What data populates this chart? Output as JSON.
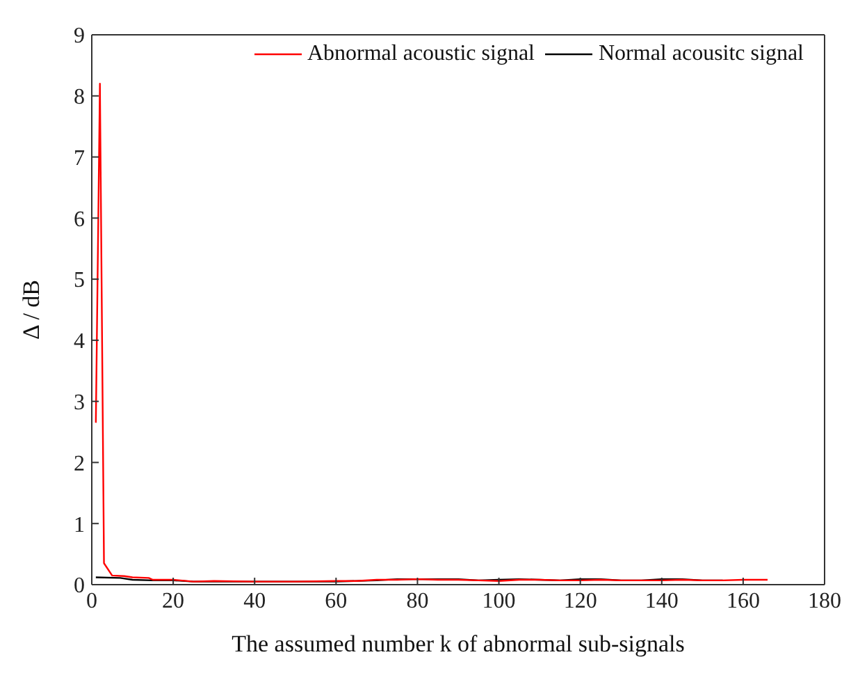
{
  "chart_data": {
    "type": "line",
    "xlabel": "The assumed number k of abnormal sub-signals",
    "ylabel": "Δ / dB",
    "xlim": [
      0,
      180
    ],
    "xticks": [
      0,
      20,
      40,
      60,
      80,
      100,
      120,
      140,
      160,
      180
    ],
    "ylim": [
      0,
      9
    ],
    "yticks": [
      0,
      1,
      2,
      3,
      4,
      5,
      6,
      7,
      8,
      9
    ],
    "legend": "top right",
    "marker": "none",
    "line_style": "solid",
    "series": [
      {
        "name": "Abnormal acoustic signal",
        "color": "#ff0000",
        "x": [
          1,
          2,
          3,
          5,
          8,
          10,
          14,
          15,
          20,
          25,
          30,
          40,
          50,
          60,
          65,
          70,
          75,
          80,
          85,
          90,
          95,
          100,
          105,
          110,
          115,
          120,
          125,
          130,
          135,
          140,
          145,
          150,
          155,
          160,
          166
        ],
        "values": [
          2.65,
          8.2,
          0.35,
          0.15,
          0.14,
          0.12,
          0.11,
          0.08,
          0.08,
          0.05,
          0.06,
          0.05,
          0.05,
          0.06,
          0.06,
          0.08,
          0.08,
          0.09,
          0.08,
          0.08,
          0.07,
          0.06,
          0.08,
          0.08,
          0.07,
          0.07,
          0.08,
          0.07,
          0.07,
          0.07,
          0.08,
          0.07,
          0.07,
          0.08,
          0.08
        ]
      },
      {
        "name": "Normal acousitc signal",
        "color": "#000000",
        "x": [
          1,
          7,
          10,
          15,
          20,
          25,
          30,
          40,
          50,
          60,
          70,
          75,
          80,
          85,
          90,
          95,
          100,
          105,
          110,
          115,
          120,
          125,
          130,
          135,
          140,
          145,
          150,
          155
        ],
        "values": [
          0.12,
          0.11,
          0.08,
          0.07,
          0.07,
          0.05,
          0.05,
          0.05,
          0.05,
          0.05,
          0.07,
          0.09,
          0.09,
          0.09,
          0.09,
          0.07,
          0.08,
          0.09,
          0.08,
          0.07,
          0.09,
          0.09,
          0.07,
          0.07,
          0.09,
          0.09,
          0.07,
          0.07
        ]
      }
    ]
  }
}
